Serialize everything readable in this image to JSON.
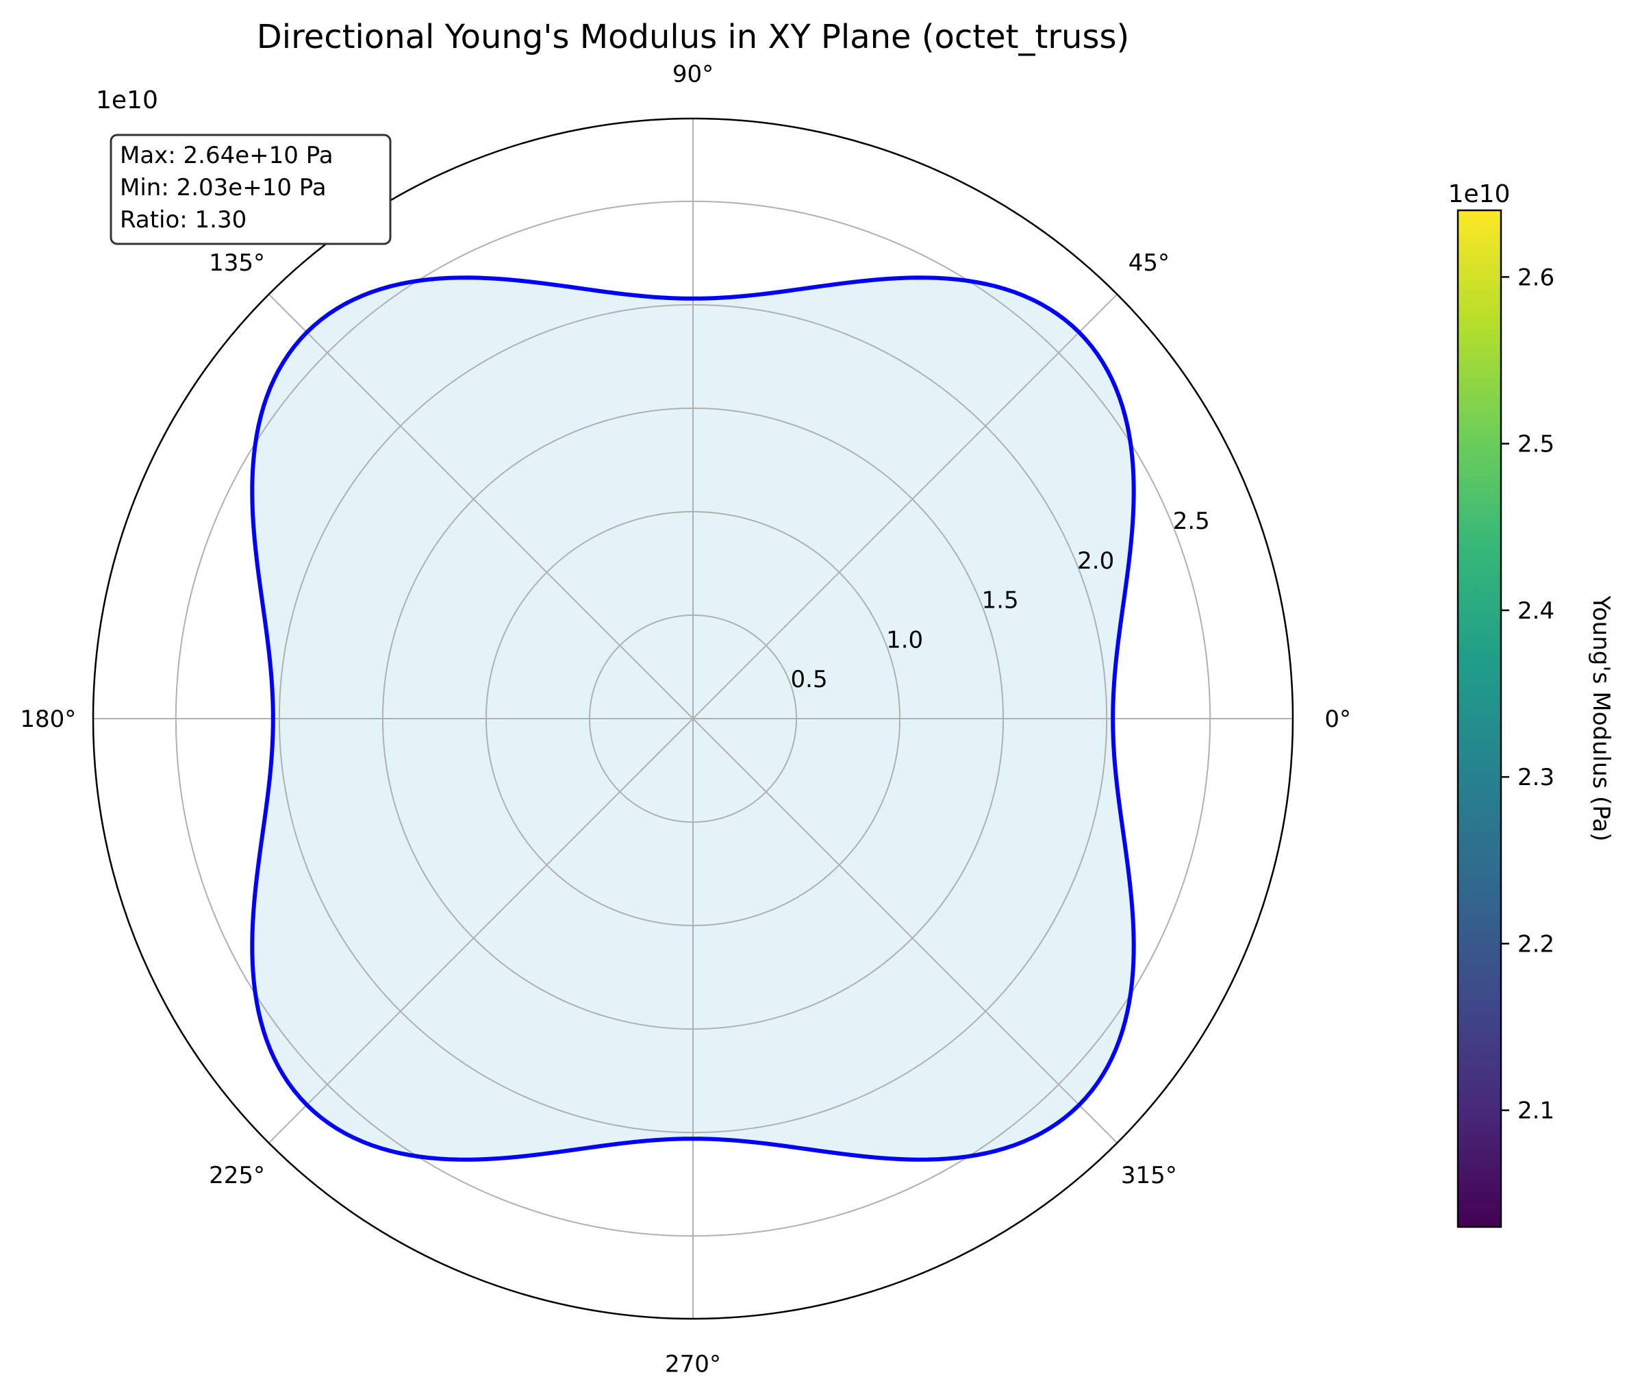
{
  "chart_data": {
    "type": "polar-line",
    "title": "Directional Young's Modulus in XY Plane (octet_truss)",
    "radial_axis": {
      "offset_text": "1e10",
      "ticks": [
        0.5,
        1.0,
        1.5,
        2.0,
        2.5
      ],
      "tick_labels": [
        "0.5",
        "1.0",
        "1.5",
        "2.0",
        "2.5"
      ],
      "rlim": [
        0,
        2.9
      ],
      "scale": 10000000000.0
    },
    "angular_axis": {
      "unit": "degrees",
      "ticks": [
        0,
        45,
        90,
        135,
        180,
        225,
        270,
        315
      ],
      "tick_labels": [
        "0°",
        "45°",
        "90°",
        "135°",
        "180°",
        "225°",
        "270°",
        "315°"
      ]
    },
    "grid": true,
    "series": [
      {
        "kind": "cubic-directional-modulus",
        "E_axis_Pa": 20300000000.0,
        "E_diagonal_Pa": 26400000000.0,
        "theta_deg": [
          0,
          15,
          30,
          45,
          60,
          75,
          90,
          105,
          120,
          135,
          150,
          165,
          180,
          195,
          210,
          225,
          240,
          255,
          270,
          285,
          300,
          315,
          330,
          345
        ],
        "E_1e10": [
          2.03,
          2.11,
          2.36,
          2.64,
          2.36,
          2.11,
          2.03,
          2.11,
          2.36,
          2.64,
          2.36,
          2.11,
          2.03,
          2.11,
          2.36,
          2.64,
          2.36,
          2.11,
          2.03,
          2.11,
          2.36,
          2.64,
          2.36,
          2.11
        ],
        "line_color": "#0000ff",
        "fill_color": "#e4f3f7"
      }
    ],
    "annotation": {
      "lines": [
        "Max: 2.64e+10 Pa",
        "Min: 2.03e+10 Pa",
        "Ratio: 1.30"
      ]
    },
    "colorbar": {
      "label": "Young's Modulus (Pa)",
      "offset_text": "1e10",
      "colormap": "viridis",
      "range": [
        2.03,
        2.64
      ],
      "ticks": [
        2.1,
        2.2,
        2.3,
        2.4,
        2.5,
        2.6
      ],
      "tick_labels": [
        "2.1",
        "2.2",
        "2.3",
        "2.4",
        "2.5",
        "2.6"
      ],
      "gradient": [
        "#440154",
        "#482878",
        "#3e4989",
        "#31688e",
        "#26828e",
        "#1f9e89",
        "#35b779",
        "#6ece58",
        "#b5de2b",
        "#fde725"
      ]
    }
  }
}
